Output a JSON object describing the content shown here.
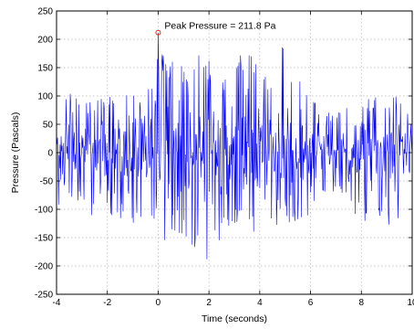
{
  "chart_data": {
    "type": "line",
    "title": "",
    "xlabel": "Time (seconds)",
    "ylabel": "Pressure (Pascals)",
    "xlim": [
      -4,
      10
    ],
    "ylim": [
      -250,
      250
    ],
    "xticks": [
      -4,
      -2,
      0,
      2,
      4,
      6,
      8,
      10
    ],
    "yticks": [
      250,
      200,
      150,
      100,
      50,
      0,
      -50,
      -100,
      -150,
      -200,
      -250
    ],
    "x_tick_labels": [
      "-4",
      "-2",
      "0",
      "2",
      "4",
      "6",
      "8",
      "10"
    ],
    "y_tick_labels": [
      "250",
      "200",
      "150",
      "100",
      "50",
      "0",
      "-50",
      "-100",
      "-150",
      "-200",
      "-250"
    ],
    "grid": true,
    "line_color": "#0000ff",
    "marker_color": "#ff0000",
    "sample_interval": 0.02,
    "series": [
      {
        "values_approx_envelope": [
          [
            -4.0,
            110,
            -100
          ],
          [
            -3.5,
            105,
            -80
          ],
          [
            -3.0,
            110,
            -90
          ],
          [
            -2.5,
            90,
            -120
          ],
          [
            -2.0,
            100,
            -115
          ],
          [
            -1.5,
            130,
            -120
          ],
          [
            -1.0,
            110,
            -130
          ],
          [
            -0.5,
            105,
            -120
          ],
          [
            0.0,
            180,
            -170
          ],
          [
            0.5,
            170,
            -165
          ],
          [
            1.0,
            160,
            -150
          ],
          [
            1.5,
            200,
            -170
          ],
          [
            2.0,
            165,
            -200
          ],
          [
            2.5,
            140,
            -150
          ],
          [
            3.0,
            150,
            -140
          ],
          [
            3.5,
            200,
            -130
          ],
          [
            4.0,
            160,
            -160
          ],
          [
            4.5,
            150,
            -140
          ],
          [
            5.0,
            205,
            -120
          ],
          [
            5.5,
            150,
            -130
          ],
          [
            6.0,
            110,
            -110
          ],
          [
            6.5,
            75,
            -80
          ],
          [
            7.0,
            70,
            -70
          ],
          [
            7.5,
            90,
            -80
          ],
          [
            8.0,
            90,
            -150
          ],
          [
            8.5,
            100,
            -100
          ],
          [
            9.0,
            105,
            -130
          ],
          [
            9.5,
            100,
            -115
          ],
          [
            10.0,
            70,
            -70
          ]
        ]
      }
    ],
    "annotation": {
      "text": "Peak Pressure = 211.8 Pa",
      "x": 0.0,
      "y": 211.8
    }
  }
}
